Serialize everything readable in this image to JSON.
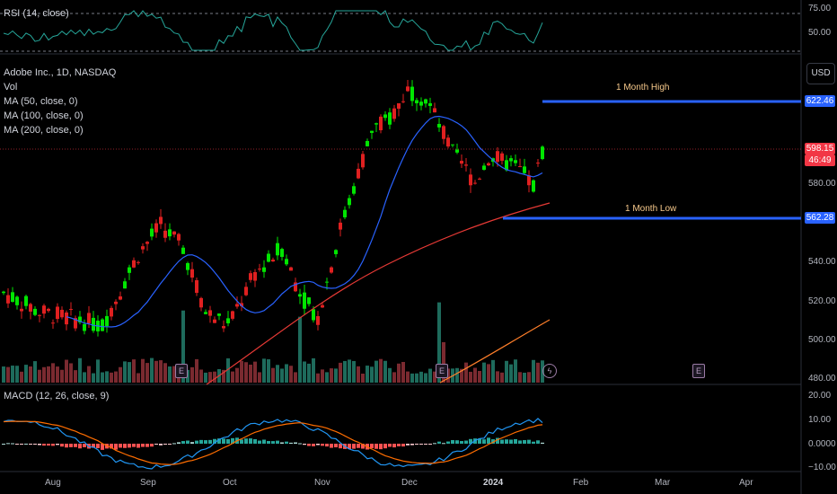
{
  "legend": {
    "rsi": "RSI (14, close)",
    "symbol": "Adobe Inc., 1D, NASDAQ",
    "vol": "Vol",
    "ma50": "MA (50, close, 0)",
    "ma100": "MA (100, close, 0)",
    "ma200": "MA (200, close, 0)",
    "macd": "MACD (12, 26, close, 9)"
  },
  "currency_button": "USD",
  "annotations": {
    "high_label": "1 Month High",
    "low_label": "1 Month Low"
  },
  "price_tags": {
    "high": "622.46",
    "last": "598.15",
    "countdown": "46:49",
    "low": "562.28"
  },
  "rsi_axis": [
    "75.00",
    "50.00"
  ],
  "price_axis": [
    "580.00",
    "540.00",
    "520.00",
    "500.00",
    "480.00"
  ],
  "macd_axis": [
    "20.00",
    "10.00",
    "0.0000",
    "−10.00"
  ],
  "earnings_badge": "E",
  "x_axis": [
    "Aug",
    "Sep",
    "Oct",
    "Nov",
    "Dec",
    "2024",
    "Feb",
    "Mar",
    "Apr"
  ],
  "colors": {
    "up": "#22ab94",
    "down": "#f23645",
    "up_candle": "#00e600",
    "down_candle": "#e02020",
    "ma50": "#2962ff",
    "ma100": "#e53935",
    "ma200": "#ff7f2a",
    "level": "#2962ff",
    "rsi": "#26a69a",
    "macd": "#2196f3",
    "signal": "#ff6d00"
  }
}
